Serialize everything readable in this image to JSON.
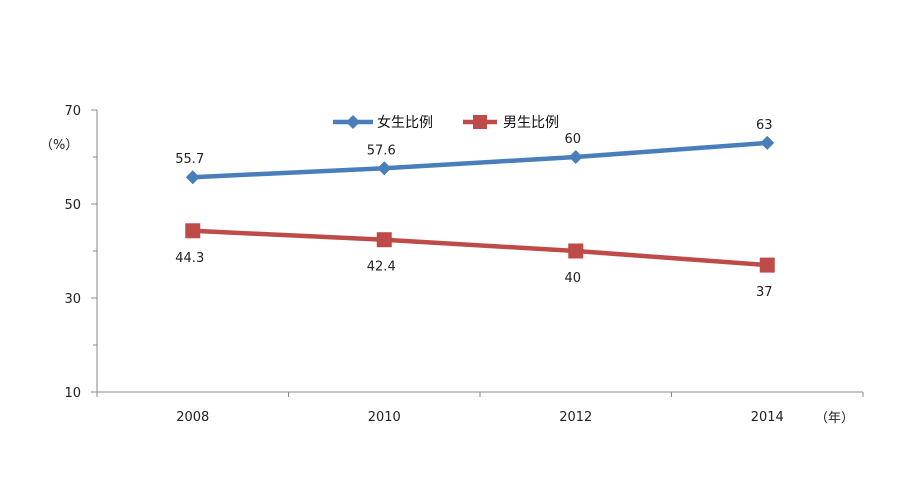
{
  "chart_data": {
    "type": "line",
    "x": [
      "2008",
      "2010",
      "2012",
      "2014"
    ],
    "series": [
      {
        "name": "女生比例",
        "values": [
          55.7,
          57.6,
          60,
          63
        ],
        "color": "#4a7ebb",
        "marker": "diamond",
        "labels": [
          "55.7",
          "57.6",
          "60",
          "63"
        ]
      },
      {
        "name": "男生比例",
        "values": [
          44.3,
          42.4,
          40,
          37
        ],
        "color": "#be4b48",
        "marker": "square",
        "labels": [
          "44.3",
          "42.4",
          "40",
          "37"
        ]
      }
    ],
    "ylim": [
      10,
      70
    ],
    "yticks": [
      "10",
      "30",
      "50",
      "70"
    ],
    "ylabel": "（%）",
    "xlabel": "（年）",
    "legend_position": "top-center",
    "grid": false
  }
}
